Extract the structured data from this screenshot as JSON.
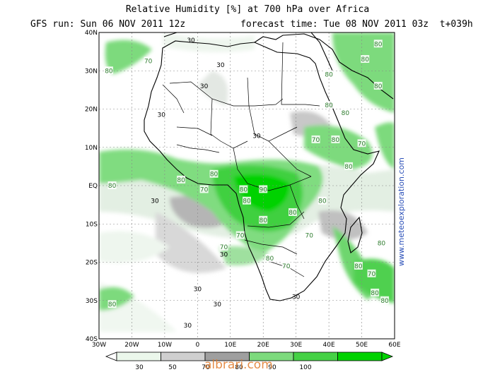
{
  "header": {
    "title": "Relative Humidity [%] at 700 hPa over  Africa",
    "run": "GFS run: Sun 06 NOV 2011 12z",
    "forecast": "forecast time: Tue 08 NOV 2011 03z  t+039h"
  },
  "map": {
    "lon_range": [
      -30,
      60
    ],
    "lat_range": [
      -40,
      40
    ],
    "lon_ticks": [
      "30W",
      "20W",
      "10W",
      "0",
      "10E",
      "20E",
      "30E",
      "40E",
      "50E",
      "60E"
    ],
    "lat_ticks": [
      "40N",
      "30N",
      "20N",
      "10N",
      "EQ",
      "10S",
      "20S",
      "30S",
      "40S"
    ],
    "grid": true,
    "contour_labels": [
      {
        "text": "70",
        "lon": -15,
        "lat": 32.5
      },
      {
        "text": "80",
        "lon": -27,
        "lat": 30
      },
      {
        "text": "30",
        "lon": -2,
        "lat": 38
      },
      {
        "text": "30",
        "lon": 7,
        "lat": 31.5
      },
      {
        "text": "30",
        "lon": 2,
        "lat": 26
      },
      {
        "text": "30",
        "lon": -11,
        "lat": 18.5
      },
      {
        "text": "30",
        "lon": 18,
        "lat": 13
      },
      {
        "text": "80",
        "lon": 5,
        "lat": 3
      },
      {
        "text": "80",
        "lon": -5,
        "lat": 1.5
      },
      {
        "text": "70",
        "lon": 2,
        "lat": -1
      },
      {
        "text": "80",
        "lon": 14,
        "lat": -1
      },
      {
        "text": "90",
        "lon": 20,
        "lat": -1
      },
      {
        "text": "80",
        "lon": 15,
        "lat": -4
      },
      {
        "text": "30",
        "lon": -13,
        "lat": -4
      },
      {
        "text": "80",
        "lon": -26,
        "lat": 0
      },
      {
        "text": "80",
        "lon": 20,
        "lat": -9
      },
      {
        "text": "70",
        "lon": 13,
        "lat": -13
      },
      {
        "text": "80",
        "lon": 29,
        "lat": -7
      },
      {
        "text": "70",
        "lon": 34,
        "lat": -13
      },
      {
        "text": "80",
        "lon": 38,
        "lat": -4
      },
      {
        "text": "70",
        "lon": 8,
        "lat": -16
      },
      {
        "text": "30",
        "lon": 8,
        "lat": -18
      },
      {
        "text": "80",
        "lon": 22,
        "lat": -19
      },
      {
        "text": "70",
        "lon": 27,
        "lat": -21
      },
      {
        "text": "30",
        "lon": 0,
        "lat": -27
      },
      {
        "text": "30",
        "lon": 30,
        "lat": -29
      },
      {
        "text": "30",
        "lon": 6,
        "lat": -31
      },
      {
        "text": "30",
        "lon": -3,
        "lat": -36.5
      },
      {
        "text": "80",
        "lon": 46,
        "lat": 5
      },
      {
        "text": "70",
        "lon": 50,
        "lat": 11
      },
      {
        "text": "80",
        "lon": 42,
        "lat": 12
      },
      {
        "text": "70",
        "lon": 36,
        "lat": 12
      },
      {
        "text": "80",
        "lon": 45,
        "lat": 19
      },
      {
        "text": "80",
        "lon": 40,
        "lat": 21
      },
      {
        "text": "80",
        "lon": 55,
        "lat": 37
      },
      {
        "text": "80",
        "lon": 51,
        "lat": 33
      },
      {
        "text": "80",
        "lon": 55,
        "lat": 26
      },
      {
        "text": "80",
        "lon": 40,
        "lat": 29
      },
      {
        "text": "80",
        "lon": 49,
        "lat": -21
      },
      {
        "text": "80",
        "lon": -26,
        "lat": -31
      },
      {
        "text": "80",
        "lon": 57,
        "lat": -30
      },
      {
        "text": "80",
        "lon": 54,
        "lat": -28
      },
      {
        "text": "70",
        "lon": 53,
        "lat": -23
      },
      {
        "text": "80",
        "lon": 56,
        "lat": -15
      }
    ]
  },
  "colorbar": {
    "labels": [
      "30",
      "50",
      "70",
      "80",
      "90",
      "100"
    ],
    "colors": [
      "#ebf7eb",
      "#cfcfcf",
      "#9f9f9f",
      "#7dda7d",
      "#45d145",
      "#00d200"
    ]
  },
  "watermark": "albrari.com",
  "credit": "www.meteoexploration.com"
}
